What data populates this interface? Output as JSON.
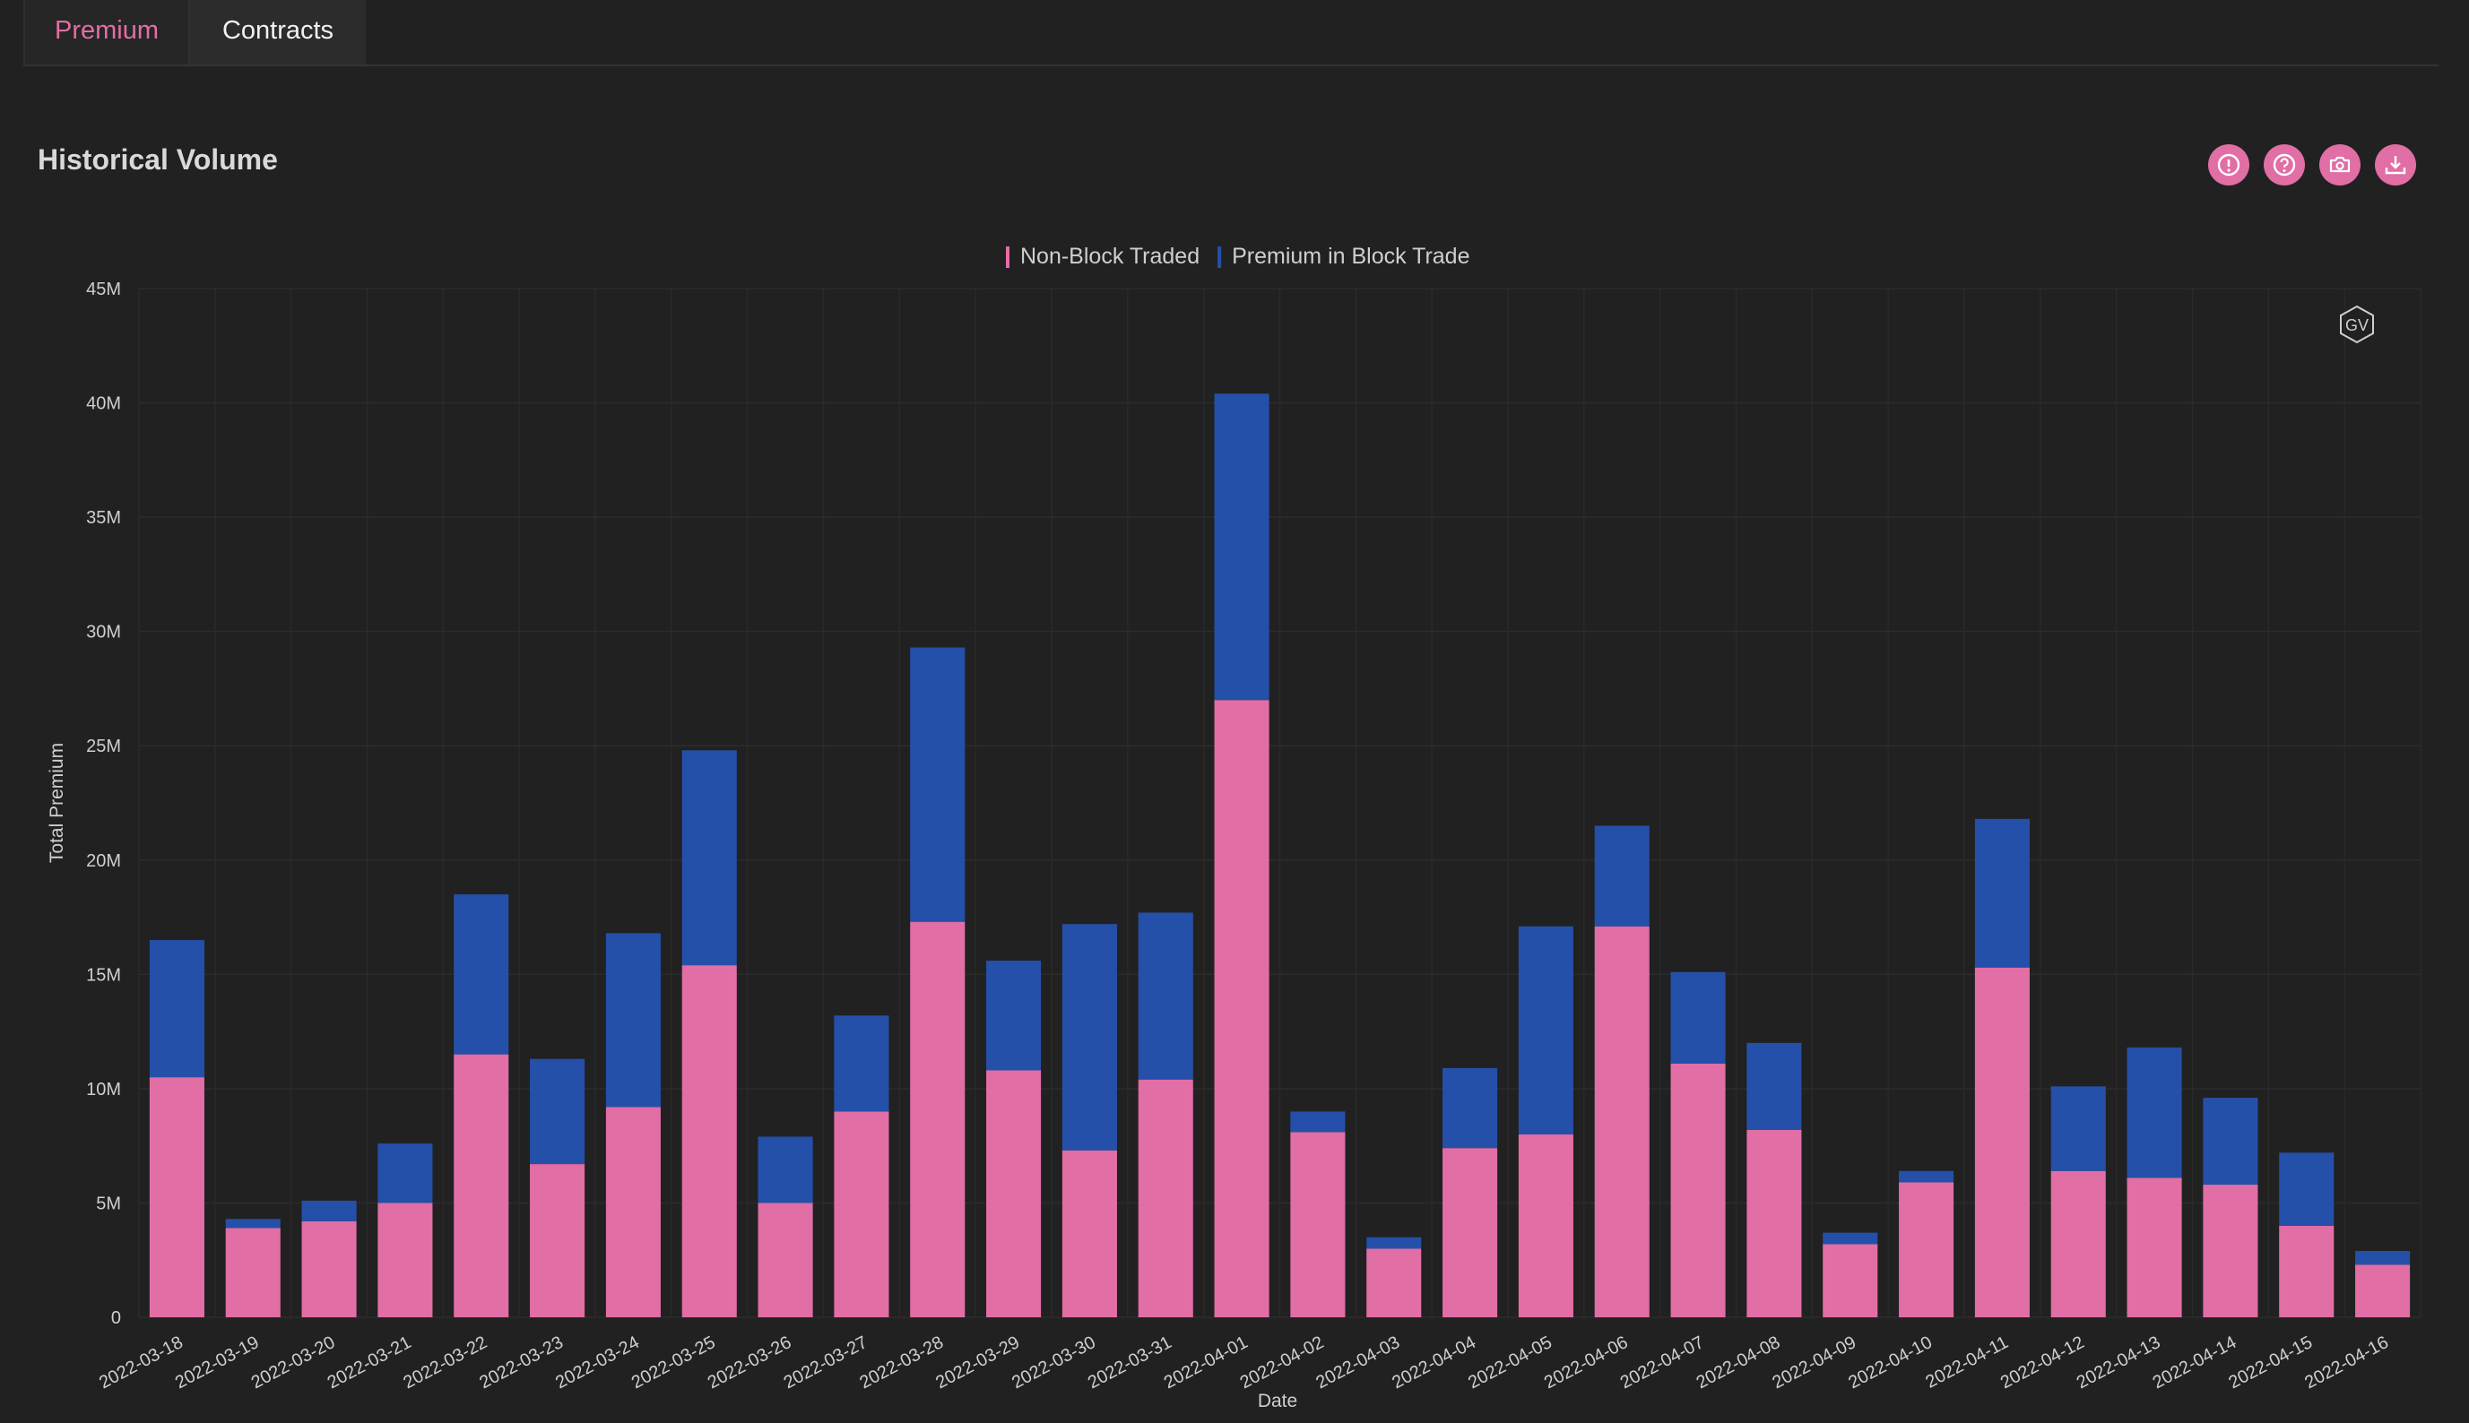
{
  "tabs": [
    {
      "label": "Premium",
      "active": true
    },
    {
      "label": "Contracts",
      "active": false
    }
  ],
  "section_title": "Historical Volume",
  "toolbar": {
    "icons": [
      "info-icon",
      "help-icon",
      "camera-icon",
      "download-icon"
    ]
  },
  "watermark": "GV",
  "colors": {
    "background": "#212121",
    "non_block": "#e16ea5",
    "block": "#2550a9",
    "accent": "#e16ea5"
  },
  "chart_data": {
    "type": "bar",
    "stacked": true,
    "xlabel": "Date",
    "ylabel": "Total Premium",
    "ylim": [
      0,
      45000000
    ],
    "yticks": [
      "0",
      "5M",
      "10M",
      "15M",
      "20M",
      "25M",
      "30M",
      "35M",
      "40M",
      "45M"
    ],
    "legend_position": "top-center",
    "grid": true,
    "categories": [
      "2022-03-18",
      "2022-03-19",
      "2022-03-20",
      "2022-03-21",
      "2022-03-22",
      "2022-03-23",
      "2022-03-24",
      "2022-03-25",
      "2022-03-26",
      "2022-03-27",
      "2022-03-28",
      "2022-03-29",
      "2022-03-30",
      "2022-03-31",
      "2022-04-01",
      "2022-04-02",
      "2022-04-03",
      "2022-04-04",
      "2022-04-05",
      "2022-04-06",
      "2022-04-07",
      "2022-04-08",
      "2022-04-09",
      "2022-04-10",
      "2022-04-11",
      "2022-04-12",
      "2022-04-13",
      "2022-04-14",
      "2022-04-15",
      "2022-04-16"
    ],
    "series": [
      {
        "name": "Non-Block Traded",
        "color": "#e16ea5",
        "values": [
          10.5,
          3.9,
          4.2,
          5.0,
          11.5,
          6.7,
          9.2,
          15.4,
          5.0,
          9.0,
          17.3,
          10.8,
          7.3,
          10.4,
          27.0,
          8.1,
          3.0,
          7.4,
          8.0,
          17.1,
          11.1,
          8.2,
          3.2,
          5.9,
          15.3,
          6.4,
          6.1,
          5.8,
          4.0,
          2.3
        ]
      },
      {
        "name": "Premium in Block Trade",
        "color": "#2550a9",
        "values": [
          6.0,
          0.4,
          0.9,
          2.6,
          7.0,
          4.6,
          7.6,
          9.4,
          2.9,
          4.2,
          12.0,
          4.8,
          9.9,
          7.3,
          13.4,
          0.9,
          0.5,
          3.5,
          9.1,
          4.4,
          4.0,
          3.8,
          0.5,
          0.5,
          6.5,
          3.7,
          5.7,
          3.8,
          3.2,
          0.6
        ]
      }
    ],
    "value_unit": "M"
  }
}
